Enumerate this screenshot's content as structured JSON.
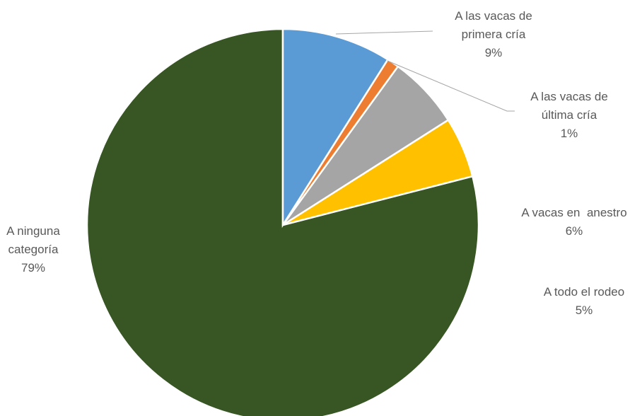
{
  "chart_data": {
    "type": "pie",
    "categories": [
      "A las vacas de primera cría",
      "A las vacas de última cría",
      "A vacas en  anestro",
      "A todo el rodeo",
      "A ninguna categoría"
    ],
    "values": [
      9,
      1,
      6,
      5,
      79
    ],
    "value_labels": [
      "9%",
      "1%",
      "6%",
      "5%",
      "79%"
    ],
    "colors": [
      "#5b9bd5",
      "#ed7d31",
      "#a5a5a5",
      "#ffc000",
      "#375623"
    ]
  }
}
